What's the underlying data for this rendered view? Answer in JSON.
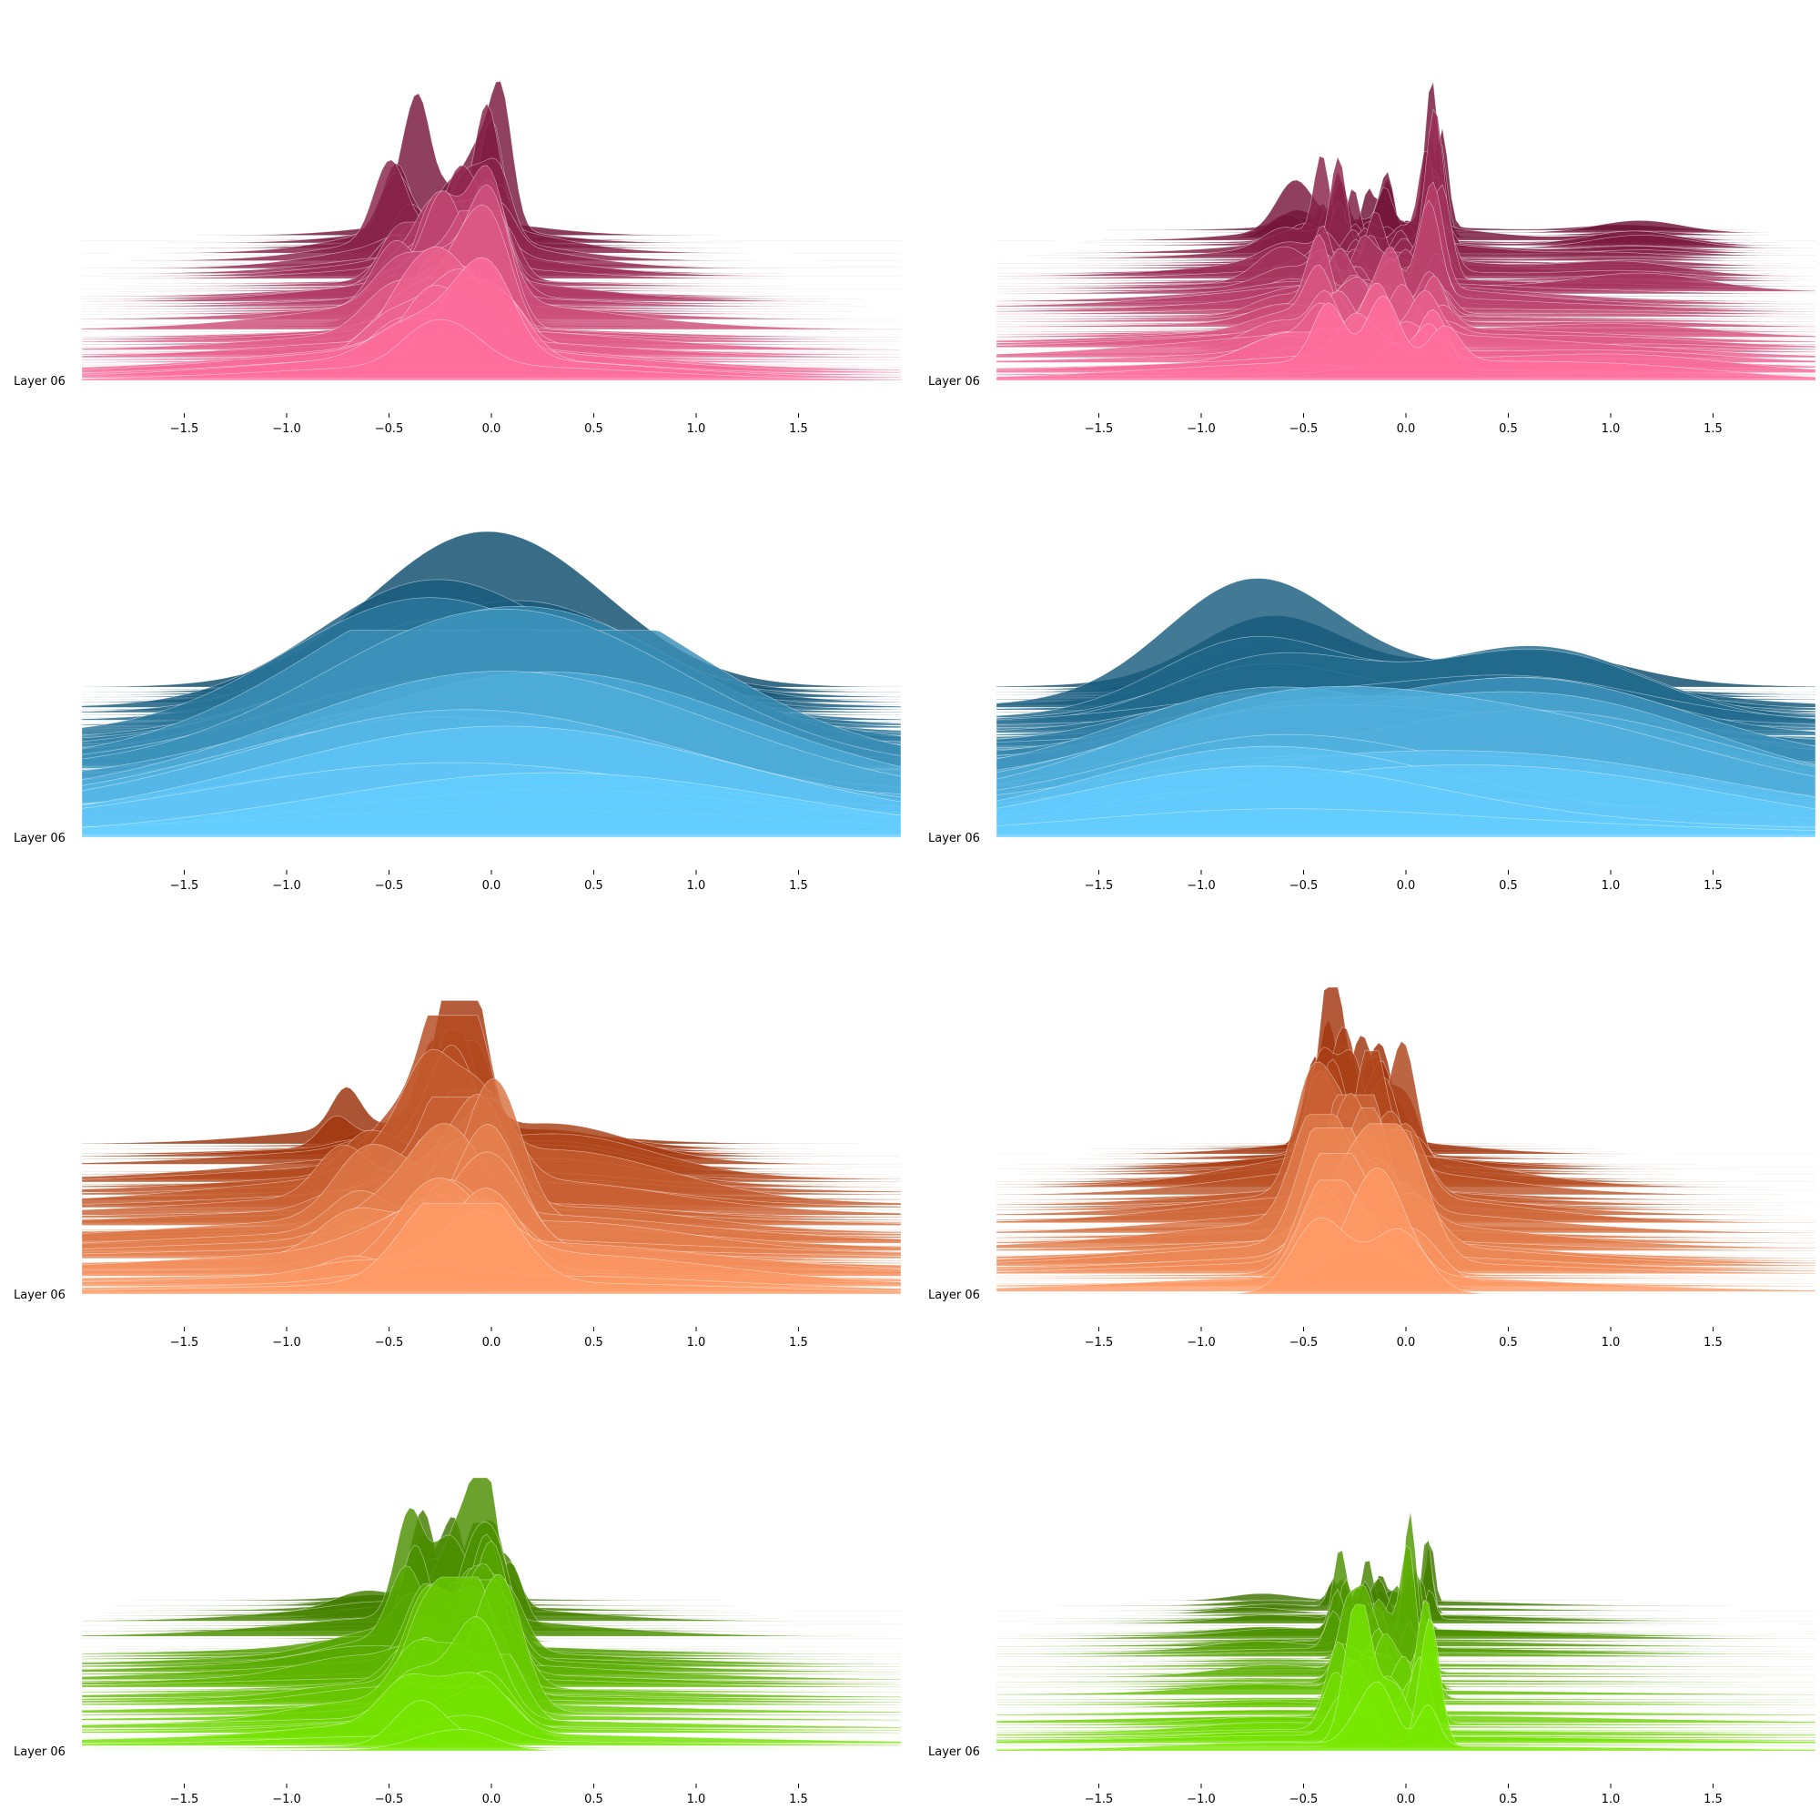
{
  "chart_data": [
    {
      "type": "area",
      "title": "",
      "layer_label": "Layer 06",
      "xlim": [
        -2.0,
        2.0
      ],
      "x_ticks": [
        -1.5,
        -1.0,
        -0.5,
        0.0,
        0.5,
        1.0,
        1.5
      ],
      "x_tick_labels": [
        "−1.5",
        "−1.0",
        "−0.5",
        "0.0",
        "0.5",
        "1.0",
        "1.5"
      ],
      "colors": {
        "back": "#6b0f33",
        "front": "#ff6f9e"
      },
      "ridge_count": 60,
      "peaks": [
        {
          "x": 0.02,
          "height": 1.0,
          "width": 0.05
        },
        {
          "x": -0.45,
          "height": 0.65,
          "width": 0.06
        },
        {
          "x": -0.3,
          "height": 0.62,
          "width": 0.05
        },
        {
          "x": -0.18,
          "height": 0.55,
          "width": 0.06
        },
        {
          "x": -0.1,
          "height": 0.5,
          "width": 0.05
        },
        {
          "x": -0.2,
          "height": 0.3,
          "width": 0.35
        }
      ]
    },
    {
      "type": "area",
      "title": "",
      "layer_label": "Layer 06",
      "xlim": [
        -2.0,
        2.0
      ],
      "x_ticks": [
        -1.5,
        -1.0,
        -0.5,
        0.0,
        0.5,
        1.0,
        1.5
      ],
      "x_tick_labels": [
        "−1.5",
        "−1.0",
        "−0.5",
        "0.0",
        "0.5",
        "1.0",
        "1.5"
      ],
      "colors": {
        "back": "#6b0f33",
        "front": "#ff6f9e"
      },
      "ridge_count": 60,
      "peaks": [
        {
          "x": 0.15,
          "height": 1.0,
          "width": 0.03
        },
        {
          "x": -0.37,
          "height": 0.75,
          "width": 0.03
        },
        {
          "x": -0.05,
          "height": 0.6,
          "width": 0.03
        },
        {
          "x": -0.2,
          "height": 0.55,
          "width": 0.03
        },
        {
          "x": -0.55,
          "height": 0.35,
          "width": 0.08
        },
        {
          "x": 1.1,
          "height": 0.12,
          "width": 0.2
        },
        {
          "x": -0.2,
          "height": 0.2,
          "width": 0.4
        }
      ]
    },
    {
      "type": "area",
      "title": "",
      "layer_label": "Layer 06",
      "xlim": [
        -2.0,
        2.0
      ],
      "x_ticks": [
        -1.5,
        -1.0,
        -0.5,
        0.0,
        0.5,
        1.0,
        1.5
      ],
      "x_tick_labels": [
        "−1.5",
        "−1.0",
        "−0.5",
        "0.0",
        "0.5",
        "1.0",
        "1.5"
      ],
      "colors": {
        "back": "#0d4c6b",
        "front": "#64cdff"
      },
      "ridge_count": 60,
      "peaks": [
        {
          "x": -0.3,
          "height": 0.8,
          "width": 0.45
        },
        {
          "x": 0.35,
          "height": 0.75,
          "width": 0.45
        },
        {
          "x": 0.0,
          "height": 0.3,
          "width": 0.6
        }
      ]
    },
    {
      "type": "area",
      "title": "",
      "layer_label": "Layer 06",
      "xlim": [
        -2.0,
        2.0
      ],
      "x_ticks": [
        -1.5,
        -1.0,
        -0.5,
        0.0,
        0.5,
        1.0,
        1.5
      ],
      "x_tick_labels": [
        "−1.5",
        "−1.0",
        "−0.5",
        "0.0",
        "0.5",
        "1.0",
        "1.5"
      ],
      "colors": {
        "back": "#0d4c6b",
        "front": "#64cdff"
      },
      "ridge_count": 60,
      "peaks": [
        {
          "x": -0.7,
          "height": 0.75,
          "width": 0.35
        },
        {
          "x": 0.65,
          "height": 0.75,
          "width": 0.4
        },
        {
          "x": 0.0,
          "height": 0.25,
          "width": 0.8
        }
      ]
    },
    {
      "type": "area",
      "title": "",
      "layer_label": "Layer 06",
      "xlim": [
        -2.0,
        2.0
      ],
      "x_ticks": [
        -1.5,
        -1.0,
        -0.5,
        0.0,
        0.5,
        1.0,
        1.5
      ],
      "x_tick_labels": [
        "−1.5",
        "−1.0",
        "−0.5",
        "0.0",
        "0.5",
        "1.0",
        "1.5"
      ],
      "colors": {
        "back": "#9a2f08",
        "front": "#ff9b66"
      },
      "ridge_count": 60,
      "peaks": [
        {
          "x": -0.25,
          "height": 1.0,
          "width": 0.07
        },
        {
          "x": -0.02,
          "height": 0.98,
          "width": 0.07
        },
        {
          "x": -0.7,
          "height": 0.45,
          "width": 0.07
        },
        {
          "x": -0.45,
          "height": 0.4,
          "width": 0.1
        },
        {
          "x": -0.1,
          "height": 0.5,
          "width": 0.07
        },
        {
          "x": 0.35,
          "height": 0.25,
          "width": 0.3
        },
        {
          "x": -0.3,
          "height": 0.2,
          "width": 0.6
        }
      ]
    },
    {
      "type": "area",
      "title": "",
      "layer_label": "Layer 06",
      "xlim": [
        -2.0,
        2.0
      ],
      "x_ticks": [
        -1.5,
        -1.0,
        -0.5,
        0.0,
        0.5,
        1.0,
        1.5
      ],
      "x_tick_labels": [
        "−1.5",
        "−1.0",
        "−0.5",
        "0.0",
        "0.5",
        "1.0",
        "1.5"
      ],
      "colors": {
        "back": "#9a2f08",
        "front": "#ff9b66"
      },
      "ridge_count": 60,
      "peaks": [
        {
          "x": -0.32,
          "height": 1.0,
          "width": 0.05
        },
        {
          "x": -0.42,
          "height": 0.9,
          "width": 0.05
        },
        {
          "x": -0.22,
          "height": 0.75,
          "width": 0.05
        },
        {
          "x": -0.12,
          "height": 0.8,
          "width": 0.05
        },
        {
          "x": 0.0,
          "height": 0.85,
          "width": 0.05
        },
        {
          "x": -0.25,
          "height": 0.3,
          "width": 0.4
        }
      ]
    },
    {
      "type": "area",
      "title": "",
      "layer_label": "Layer 06",
      "xlim": [
        -2.0,
        2.0
      ],
      "x_ticks": [
        -1.5,
        -1.0,
        -0.5,
        0.0,
        0.5,
        1.0,
        1.5
      ],
      "x_tick_labels": [
        "−1.5",
        "−1.0",
        "−0.5",
        "0.0",
        "0.5",
        "1.0",
        "1.5"
      ],
      "colors": {
        "back": "#3e7300",
        "front": "#77e800"
      },
      "ridge_count": 60,
      "peaks": [
        {
          "x": 0.03,
          "height": 1.0,
          "width": 0.05
        },
        {
          "x": -0.05,
          "height": 0.8,
          "width": 0.05
        },
        {
          "x": -0.37,
          "height": 0.72,
          "width": 0.05
        },
        {
          "x": -0.12,
          "height": 0.55,
          "width": 0.05
        },
        {
          "x": -0.25,
          "height": 0.5,
          "width": 0.06
        },
        {
          "x": -0.6,
          "height": 0.2,
          "width": 0.15
        },
        {
          "x": -0.3,
          "height": 0.15,
          "width": 0.5
        }
      ]
    },
    {
      "type": "area",
      "title": "",
      "layer_label": "Layer 06",
      "xlim": [
        -2.0,
        2.0
      ],
      "x_ticks": [
        -1.5,
        -1.0,
        -0.5,
        0.0,
        0.5,
        1.0,
        1.5
      ],
      "x_tick_labels": [
        "−1.5",
        "−1.0",
        "−0.5",
        "0.0",
        "0.5",
        "1.0",
        "1.5"
      ],
      "colors": {
        "back": "#3e7300",
        "front": "#77e800"
      },
      "ridge_count": 60,
      "peaks": [
        {
          "x": 0.06,
          "height": 1.0,
          "width": 0.02
        },
        {
          "x": -0.3,
          "height": 0.65,
          "width": 0.025
        },
        {
          "x": -0.18,
          "height": 0.6,
          "width": 0.025
        },
        {
          "x": -0.1,
          "height": 0.55,
          "width": 0.03
        },
        {
          "x": -0.7,
          "height": 0.1,
          "width": 0.15
        },
        {
          "x": -0.1,
          "height": 0.08,
          "width": 0.5
        }
      ]
    }
  ]
}
